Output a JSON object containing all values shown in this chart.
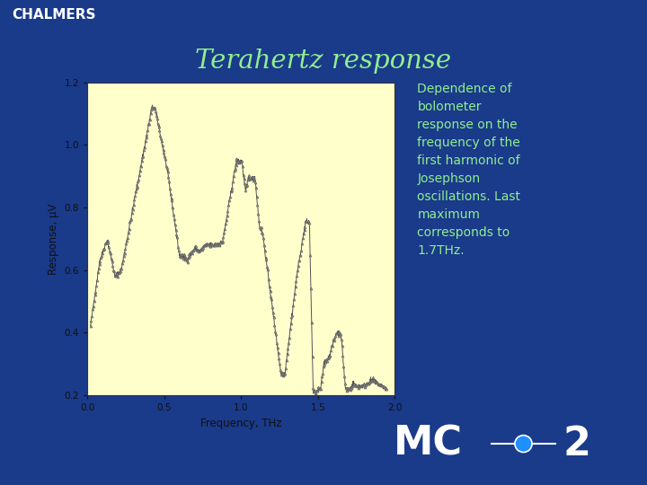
{
  "title": "Terahertz response",
  "title_color": "#90ee90",
  "bg_color": "#1a3a8a",
  "header_color": "#000000",
  "header_text": "CHALMERS",
  "header_text_color": "#ffffff",
  "plot_bg_color": "#ffffcc",
  "description_lines": [
    "Dependence of",
    "bolometer",
    "response on the",
    "frequency of the",
    "first harmonic of",
    "Josephson",
    "oscillations. Last",
    "maximum",
    "corresponds to",
    "1.7THz."
  ],
  "description_color": "#90ee90",
  "xlabel": "Frequency, THz",
  "ylabel": "Response, μV",
  "xlim": [
    0.0,
    2.0
  ],
  "ylim": [
    0.2,
    1.2
  ],
  "xticks": [
    0.0,
    0.5,
    1.0,
    1.5,
    2.0
  ],
  "yticks": [
    0.2,
    0.4,
    0.6,
    0.8,
    1.0,
    1.2
  ],
  "mc2_circle_color": "#1e90ff"
}
